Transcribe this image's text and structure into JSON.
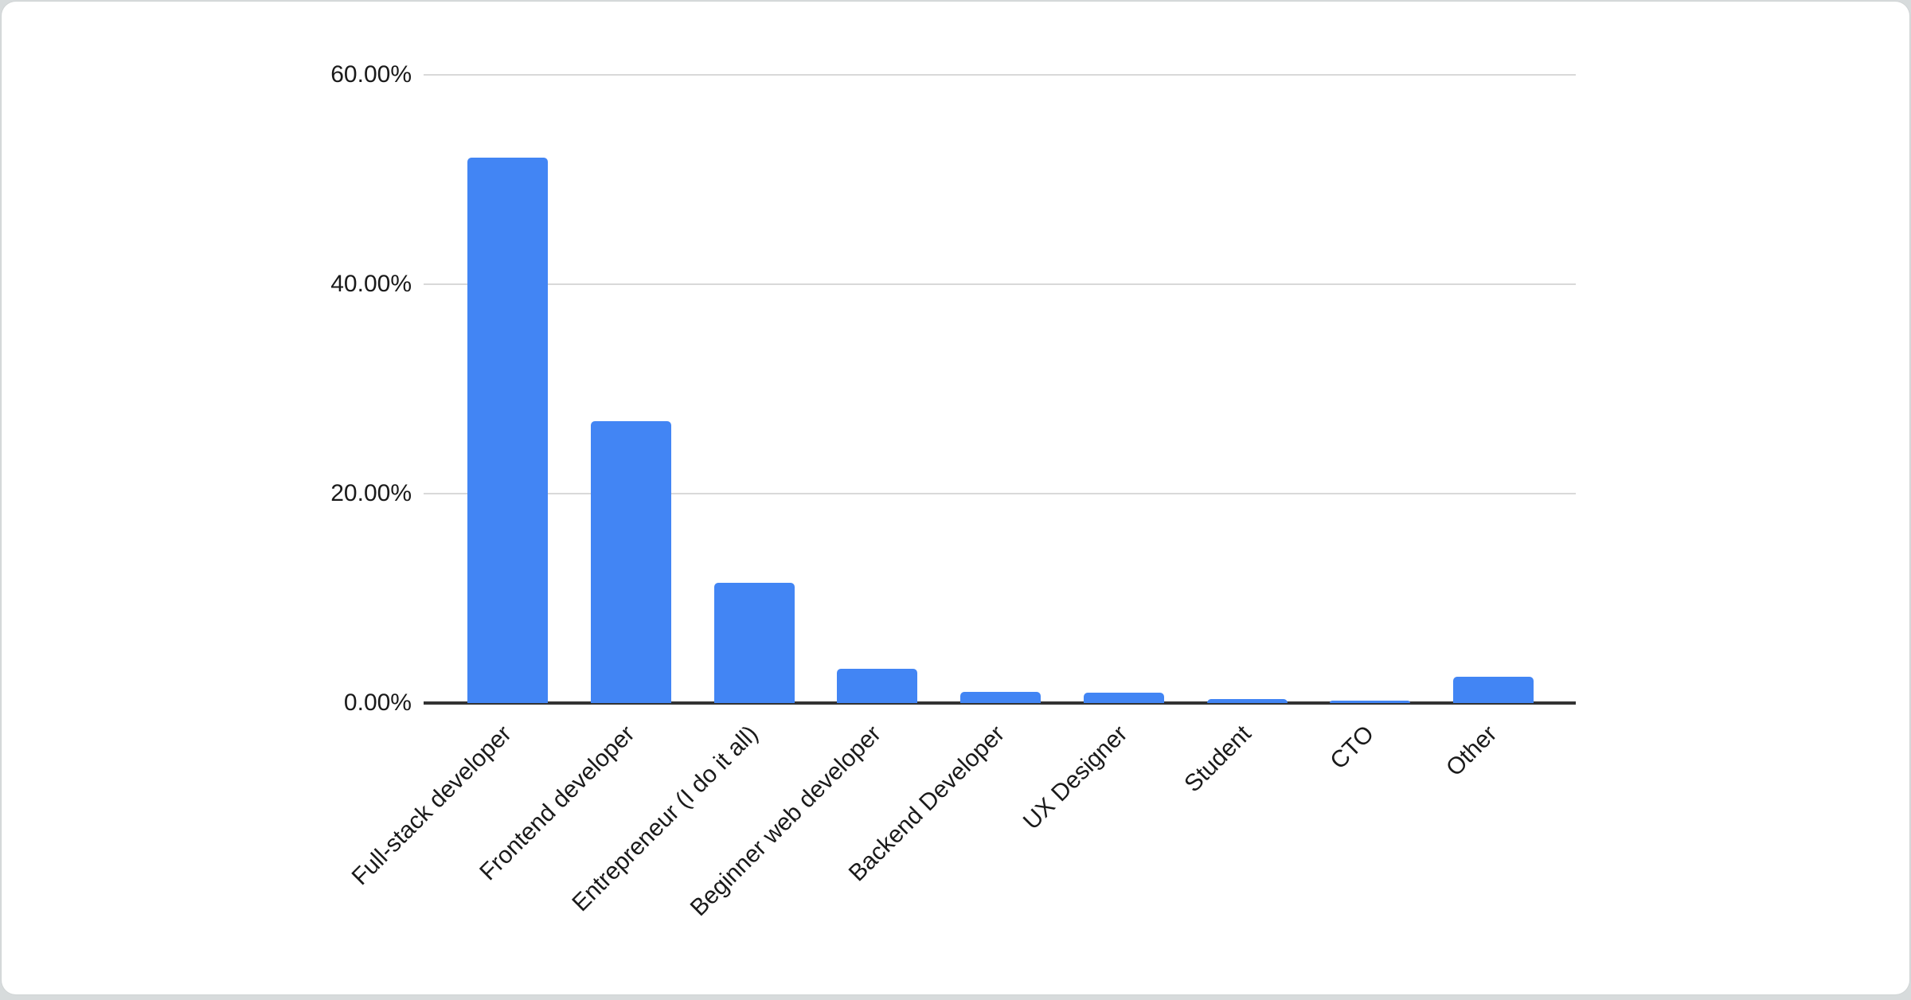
{
  "chart_data": {
    "type": "bar",
    "title": "",
    "xlabel": "",
    "ylabel": "",
    "unit": "%",
    "categories": [
      "Full-stack developer",
      "Frontend developer",
      "Entrepreneur (I do it all)",
      "Beginner web developer",
      "Backend Developer",
      "UX Designer",
      "Student",
      "CTO",
      "Other"
    ],
    "values": [
      52.1,
      26.9,
      11.5,
      3.3,
      1.1,
      1.0,
      0.4,
      0.25,
      2.5
    ],
    "ylim": [
      0,
      60
    ],
    "y_ticks": [
      {
        "value": 0,
        "label": "0.00%"
      },
      {
        "value": 20,
        "label": "20.00%"
      },
      {
        "value": 40,
        "label": "40.00%"
      },
      {
        "value": 60,
        "label": "60.00%"
      }
    ],
    "grid": true,
    "legend": false,
    "x_label_rotation_deg": 45,
    "colors": {
      "bar": "#4285f4",
      "axis_line": "#333333",
      "gridline": "#d9d9d9",
      "label_text": "#1a1a1a",
      "card_background": "#ffffff",
      "page_background": "#d7dbdc"
    }
  }
}
